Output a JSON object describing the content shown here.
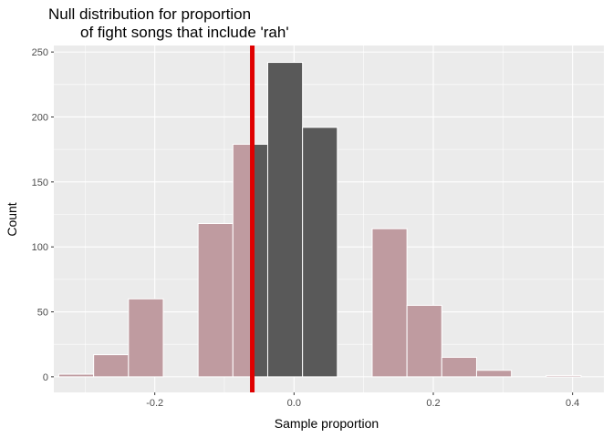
{
  "chart_data": {
    "type": "bar",
    "title_lines": [
      "Null distribution for proportion",
      "of fight songs that include 'rah'"
    ],
    "xlabel": "Sample proportion",
    "ylabel": "Count",
    "xlim": [
      -0.345,
      0.445
    ],
    "ylim": [
      -12,
      255
    ],
    "x_ticks": [
      -0.2,
      0.0,
      0.2,
      0.4
    ],
    "x_tick_labels": [
      "-0.2",
      "0.0",
      "0.2",
      "0.4"
    ],
    "y_ticks": [
      0,
      50,
      100,
      150,
      200,
      250
    ],
    "y_tick_labels": [
      "0",
      "50",
      "100",
      "150",
      "200",
      "250"
    ],
    "bin_width": 0.05,
    "bins": [
      {
        "center": -0.3128,
        "count": 2,
        "shaded": false
      },
      {
        "center": -0.2628,
        "count": 17,
        "shaded": false
      },
      {
        "center": -0.2128,
        "count": 60,
        "shaded": false
      },
      {
        "center": -0.1628,
        "count": 0,
        "shaded": false
      },
      {
        "center": -0.1128,
        "count": 118,
        "shaded": false
      },
      {
        "center": -0.0628,
        "count": 179,
        "shaded": false,
        "shaded_from": -0.06
      },
      {
        "center": -0.0128,
        "count": 242,
        "shaded": true
      },
      {
        "center": 0.0372,
        "count": 192,
        "shaded": true,
        "shaded_to": 0.07
      },
      {
        "center": 0.0872,
        "count": 0,
        "shaded": false
      },
      {
        "center": 0.1372,
        "count": 114,
        "shaded": false
      },
      {
        "center": 0.1872,
        "count": 55,
        "shaded": false
      },
      {
        "center": 0.2372,
        "count": 15,
        "shaded": false
      },
      {
        "center": 0.2872,
        "count": 5,
        "shaded": false
      },
      {
        "center": 0.3372,
        "count": 0,
        "shaded": false
      },
      {
        "center": 0.3872,
        "count": 1,
        "shaded": false
      }
    ],
    "observed_value": -0.06,
    "shade_interval": [
      -0.06,
      0.07
    ],
    "grid": true,
    "colors": {
      "panel": "#ebebeb",
      "grid_major": "#ffffff",
      "bar_fill": "#bf9ba0",
      "bar_shaded": "#595959",
      "bar_border": "#ffffff",
      "observed_line": "#e00000"
    }
  }
}
